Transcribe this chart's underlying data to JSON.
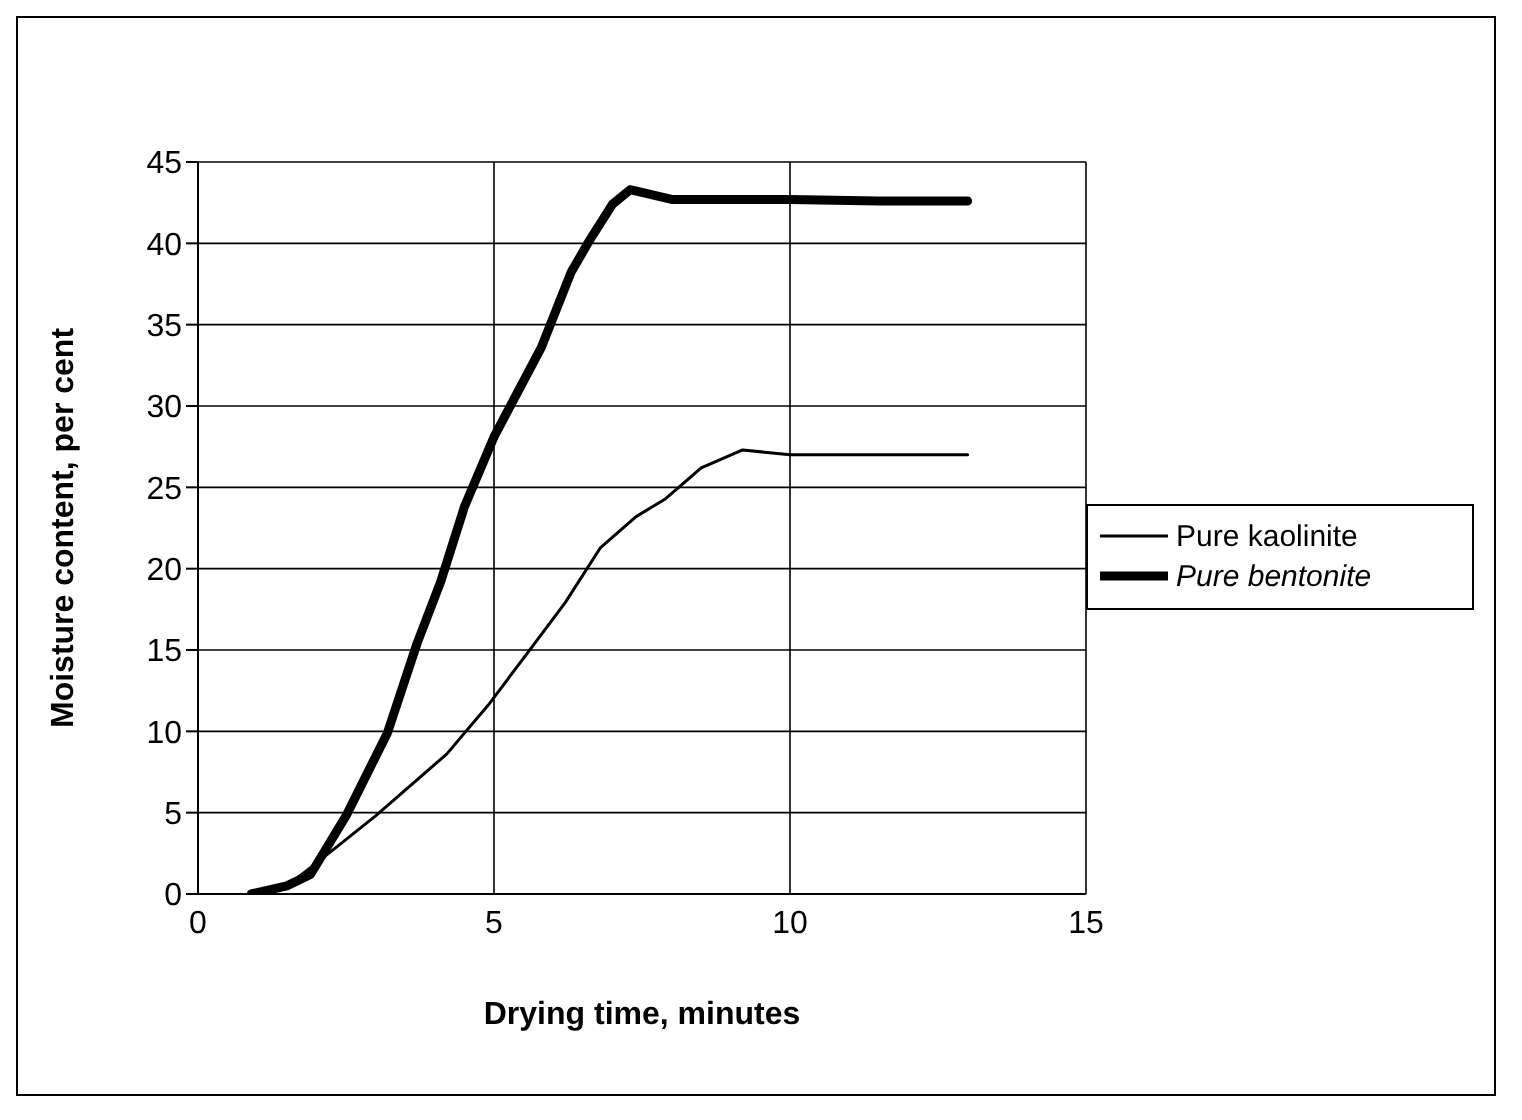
{
  "chart_data": {
    "type": "line",
    "xlabel": "Drying time, minutes",
    "ylabel": "Moisture content, per cent",
    "xlim": [
      0,
      15
    ],
    "xticks": [
      0,
      5,
      10,
      15
    ],
    "ylim": [
      0,
      45
    ],
    "yticks": [
      0,
      5,
      10,
      15,
      20,
      25,
      30,
      35,
      40,
      45
    ],
    "grid": true,
    "legend": "right",
    "marker": "none",
    "line_style": "solid",
    "series": [
      {
        "name": "Pure kaolinite",
        "color": "#000000",
        "x": [
          0.9,
          1.5,
          2.0,
          3.0,
          4.2,
          4.9,
          5.5,
          6.2,
          6.8,
          7.4,
          7.9,
          8.5,
          9.2,
          10.0,
          11.5,
          13.0
        ],
        "values": [
          0,
          0.5,
          1.9,
          4.8,
          8.6,
          11.6,
          14.5,
          17.9,
          21.3,
          23.2,
          24.3,
          26.2,
          27.3,
          27.0,
          27.0,
          27.0
        ]
      },
      {
        "name": "Pure bentonite",
        "color": "#000000",
        "x": [
          0.9,
          1.5,
          1.9,
          2.5,
          3.2,
          3.7,
          4.1,
          4.5,
          5.0,
          5.8,
          6.3,
          6.6,
          7.0,
          7.3,
          8.0,
          10.0,
          11.5,
          13.0
        ],
        "values": [
          0,
          0.5,
          1.2,
          4.8,
          9.9,
          15.4,
          19.2,
          23.8,
          28.1,
          33.6,
          38.2,
          40.1,
          42.4,
          43.3,
          42.7,
          42.7,
          42.6,
          42.6
        ]
      }
    ]
  }
}
